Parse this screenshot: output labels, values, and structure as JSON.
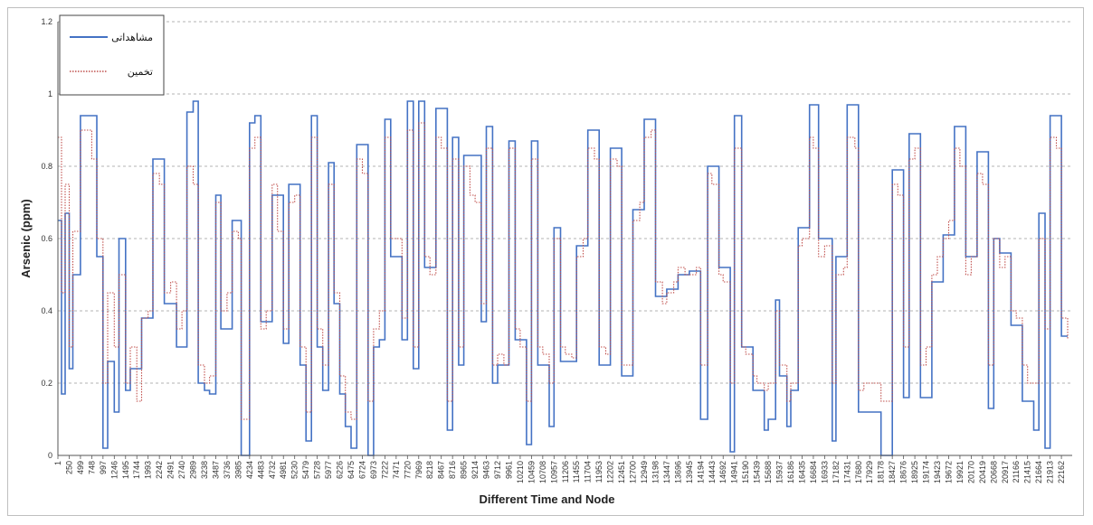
{
  "chart_data": {
    "type": "line",
    "title": "",
    "xlabel": "Different Time and Node",
    "ylabel": "Arsenic (ppm)",
    "ylim": [
      0,
      1.2
    ],
    "yticks": [
      "0",
      "0.2",
      "0.4",
      "0.6",
      "0.8",
      "1",
      "1.2"
    ],
    "grid": "horizontal-dashed",
    "legend_position": "top-left",
    "xticks": [
      "1",
      "250",
      "499",
      "748",
      "997",
      "1246",
      "1495",
      "1744",
      "1993",
      "2242",
      "2491",
      "2740",
      "2989",
      "3238",
      "3487",
      "3736",
      "3985",
      "4234",
      "4483",
      "4732",
      "4981",
      "5230",
      "5479",
      "5728",
      "5977",
      "6226",
      "6475",
      "6724",
      "6973",
      "7222",
      "7471",
      "7720",
      "7969",
      "8218",
      "8467",
      "8716",
      "8965",
      "9214",
      "9463",
      "9712",
      "9961",
      "10210",
      "10459",
      "10708",
      "10957",
      "11206",
      "11455",
      "11704",
      "11953",
      "12202",
      "12451",
      "12700",
      "12949",
      "13198",
      "13447",
      "13696",
      "13945",
      "14194",
      "14443",
      "14692",
      "14941",
      "15190",
      "15439",
      "15688",
      "15937",
      "16186",
      "16435",
      "16684",
      "16933",
      "17182",
      "17431",
      "17680",
      "17929",
      "18178",
      "18427",
      "18676",
      "18925",
      "19174",
      "19423",
      "19672",
      "19921",
      "20170",
      "20419",
      "20668",
      "20917",
      "21166",
      "21415",
      "21664",
      "21913",
      "22162"
    ],
    "series": [
      {
        "name": "مشاهداتی",
        "color": "#4472c4",
        "style": "solid",
        "x": [
          1,
          80,
          160,
          250,
          330,
          499,
          748,
          860,
          997,
          1100,
          1246,
          1350,
          1495,
          1600,
          1744,
          1850,
          1993,
          2100,
          2242,
          2350,
          2491,
          2620,
          2740,
          2850,
          2989,
          3100,
          3238,
          3350,
          3487,
          3600,
          3736,
          3850,
          3985,
          4050,
          4234,
          4350,
          4483,
          4600,
          4732,
          4850,
          4981,
          5100,
          5230,
          5350,
          5479,
          5600,
          5728,
          5850,
          5977,
          6100,
          6226,
          6350,
          6475,
          6600,
          6724,
          6850,
          6973,
          7100,
          7222,
          7350,
          7471,
          7600,
          7720,
          7850,
          7969,
          8100,
          8218,
          8350,
          8467,
          8600,
          8716,
          8850,
          8965,
          9100,
          9214,
          9350,
          9463,
          9600,
          9712,
          9850,
          9961,
          10100,
          10210,
          10350,
          10459,
          10600,
          10708,
          10850,
          10957,
          11100,
          11206,
          11350,
          11455,
          11600,
          11704,
          11850,
          11953,
          12100,
          12202,
          12350,
          12451,
          12600,
          12700,
          12850,
          12949,
          13100,
          13198,
          13350,
          13447,
          13600,
          13696,
          13850,
          13945,
          14100,
          14194,
          14350,
          14443,
          14600,
          14692,
          14850,
          14941,
          15100,
          15190,
          15350,
          15439,
          15600,
          15688,
          15850,
          15937,
          16100,
          16186,
          16350,
          16435,
          16600,
          16684,
          16800,
          16933,
          17100,
          17182,
          17350,
          17431,
          17600,
          17680,
          17800,
          17929,
          18178,
          18427,
          18550,
          18676,
          18800,
          18925,
          19050,
          19174,
          19300,
          19423,
          19550,
          19672,
          19800,
          19921,
          20050,
          20170,
          20300,
          20419,
          20550,
          20668,
          20800,
          20917,
          21050,
          21166,
          21300,
          21415,
          21550,
          21664,
          21800,
          21913,
          22050,
          22162,
          22300
        ],
        "y": [
          0.65,
          0.17,
          0.67,
          0.24,
          0.5,
          0.94,
          0.94,
          0.55,
          0.02,
          0.26,
          0.12,
          0.6,
          0.18,
          0.24,
          0.24,
          0.38,
          0.38,
          0.82,
          0.82,
          0.42,
          0.42,
          0.3,
          0.3,
          0.95,
          0.98,
          0.2,
          0.18,
          0.17,
          0.72,
          0.35,
          0.35,
          0.65,
          0.65,
          0.0,
          0.92,
          0.94,
          0.37,
          0.37,
          0.72,
          0.72,
          0.31,
          0.75,
          0.75,
          0.25,
          0.04,
          0.94,
          0.3,
          0.18,
          0.81,
          0.42,
          0.17,
          0.08,
          0.02,
          0.86,
          0.86,
          0.0,
          0.3,
          0.32,
          0.93,
          0.55,
          0.55,
          0.32,
          0.98,
          0.24,
          0.98,
          0.52,
          0.52,
          0.96,
          0.96,
          0.07,
          0.88,
          0.25,
          0.83,
          0.83,
          0.83,
          0.37,
          0.91,
          0.2,
          0.25,
          0.25,
          0.87,
          0.32,
          0.32,
          0.03,
          0.87,
          0.25,
          0.25,
          0.08,
          0.63,
          0.26,
          0.26,
          0.26,
          0.58,
          0.58,
          0.9,
          0.9,
          0.25,
          0.25,
          0.85,
          0.85,
          0.22,
          0.22,
          0.68,
          0.68,
          0.93,
          0.93,
          0.44,
          0.44,
          0.46,
          0.46,
          0.5,
          0.5,
          0.51,
          0.51,
          0.1,
          0.8,
          0.8,
          0.52,
          0.52,
          0.01,
          0.94,
          0.3,
          0.3,
          0.18,
          0.18,
          0.07,
          0.1,
          0.43,
          0.22,
          0.08,
          0.18,
          0.63,
          0.63,
          0.97,
          0.97,
          0.6,
          0.6,
          0.04,
          0.55,
          0.55,
          0.97,
          0.97,
          0.12,
          0.12,
          0.12,
          0.0,
          0.79,
          0.79,
          0.16,
          0.89,
          0.89,
          0.16,
          0.16,
          0.48,
          0.48,
          0.61,
          0.61,
          0.91,
          0.91,
          0.55,
          0.55,
          0.84,
          0.84,
          0.13,
          0.6,
          0.56,
          0.56,
          0.36,
          0.36,
          0.15,
          0.15,
          0.07,
          0.67,
          0.02,
          0.94,
          0.94,
          0.33,
          0.33
        ]
      },
      {
        "name": "تخمین",
        "color": "#c0504d",
        "style": "dotted",
        "x": [
          1,
          80,
          160,
          250,
          330,
          499,
          748,
          860,
          997,
          1100,
          1246,
          1350,
          1495,
          1600,
          1744,
          1850,
          1993,
          2100,
          2242,
          2350,
          2491,
          2620,
          2740,
          2850,
          2989,
          3100,
          3238,
          3350,
          3487,
          3600,
          3736,
          3850,
          3985,
          4050,
          4234,
          4350,
          4483,
          4600,
          4732,
          4850,
          4981,
          5100,
          5230,
          5350,
          5479,
          5600,
          5728,
          5850,
          5977,
          6100,
          6226,
          6350,
          6475,
          6600,
          6724,
          6850,
          6973,
          7100,
          7222,
          7350,
          7471,
          7600,
          7720,
          7850,
          7969,
          8100,
          8218,
          8350,
          8467,
          8600,
          8716,
          8850,
          8965,
          9100,
          9214,
          9350,
          9463,
          9600,
          9712,
          9850,
          9961,
          10100,
          10210,
          10350,
          10459,
          10600,
          10708,
          10850,
          10957,
          11100,
          11206,
          11350,
          11455,
          11600,
          11704,
          11850,
          11953,
          12100,
          12202,
          12350,
          12451,
          12600,
          12700,
          12850,
          12949,
          13100,
          13198,
          13350,
          13447,
          13600,
          13696,
          13850,
          13945,
          14100,
          14194,
          14350,
          14443,
          14600,
          14692,
          14850,
          14941,
          15100,
          15190,
          15350,
          15439,
          15600,
          15688,
          15850,
          15937,
          16100,
          16186,
          16350,
          16435,
          16600,
          16684,
          16800,
          16933,
          17100,
          17182,
          17350,
          17431,
          17600,
          17680,
          17800,
          17929,
          18178,
          18427,
          18550,
          18676,
          18800,
          18925,
          19050,
          19174,
          19300,
          19423,
          19550,
          19672,
          19800,
          19921,
          20050,
          20170,
          20300,
          20419,
          20550,
          20668,
          20800,
          20917,
          21050,
          21166,
          21300,
          21415,
          21550,
          21664,
          21800,
          21913,
          22050,
          22162,
          22300
        ],
        "y": [
          0.88,
          0.45,
          0.75,
          0.3,
          0.62,
          0.9,
          0.82,
          0.6,
          0.2,
          0.45,
          0.3,
          0.5,
          0.2,
          0.3,
          0.15,
          0.38,
          0.4,
          0.78,
          0.75,
          0.45,
          0.48,
          0.35,
          0.4,
          0.8,
          0.75,
          0.25,
          0.2,
          0.22,
          0.7,
          0.4,
          0.45,
          0.62,
          0.6,
          0.1,
          0.85,
          0.88,
          0.35,
          0.4,
          0.75,
          0.62,
          0.35,
          0.7,
          0.72,
          0.3,
          0.12,
          0.88,
          0.35,
          0.25,
          0.75,
          0.45,
          0.22,
          0.12,
          0.1,
          0.82,
          0.78,
          0.15,
          0.35,
          0.4,
          0.88,
          0.6,
          0.6,
          0.38,
          0.9,
          0.3,
          0.92,
          0.55,
          0.5,
          0.88,
          0.85,
          0.15,
          0.82,
          0.3,
          0.8,
          0.72,
          0.7,
          0.42,
          0.85,
          0.25,
          0.28,
          0.25,
          0.85,
          0.35,
          0.3,
          0.15,
          0.82,
          0.3,
          0.28,
          0.2,
          0.6,
          0.3,
          0.28,
          0.27,
          0.55,
          0.6,
          0.85,
          0.82,
          0.3,
          0.28,
          0.82,
          0.8,
          0.25,
          0.25,
          0.65,
          0.7,
          0.88,
          0.9,
          0.48,
          0.42,
          0.45,
          0.48,
          0.52,
          0.5,
          0.5,
          0.52,
          0.25,
          0.78,
          0.75,
          0.5,
          0.48,
          0.2,
          0.85,
          0.3,
          0.28,
          0.22,
          0.2,
          0.18,
          0.2,
          0.4,
          0.25,
          0.15,
          0.2,
          0.58,
          0.6,
          0.88,
          0.85,
          0.55,
          0.58,
          0.2,
          0.5,
          0.52,
          0.88,
          0.85,
          0.18,
          0.2,
          0.2,
          0.15,
          0.75,
          0.72,
          0.3,
          0.82,
          0.85,
          0.25,
          0.3,
          0.5,
          0.55,
          0.6,
          0.65,
          0.85,
          0.8,
          0.5,
          0.55,
          0.78,
          0.75,
          0.25,
          0.6,
          0.52,
          0.55,
          0.4,
          0.38,
          0.25,
          0.2,
          0.2,
          0.6,
          0.35,
          0.88,
          0.85,
          0.38,
          0.32
        ]
      }
    ]
  }
}
